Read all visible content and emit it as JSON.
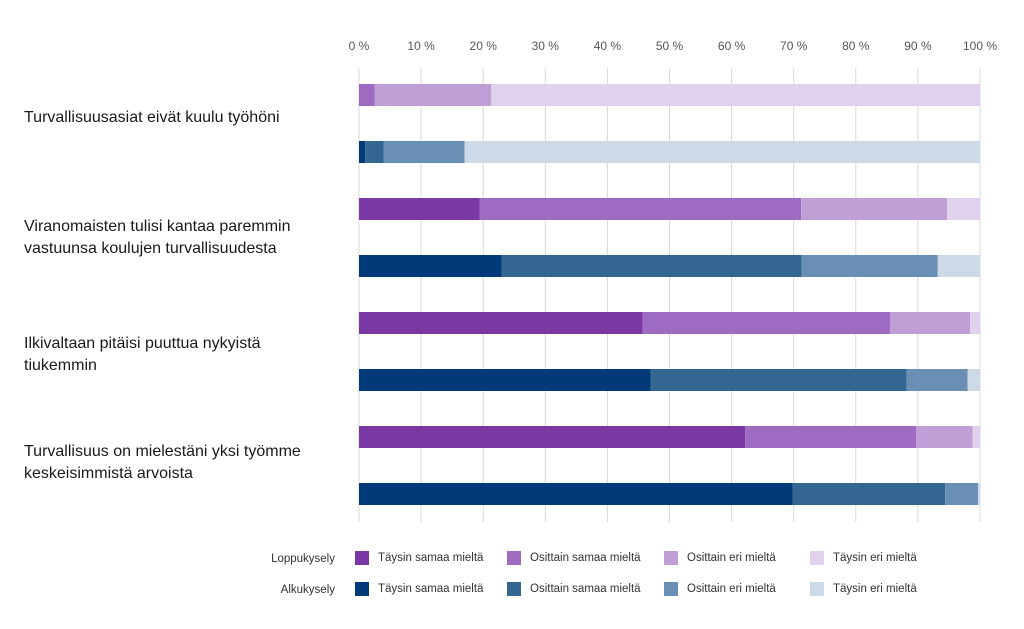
{
  "chart_data": {
    "type": "bar",
    "orientation": "horizontal",
    "stacked": true,
    "xlim": [
      0,
      100
    ],
    "x_ticks": [
      "0 %",
      "10 %",
      "20 %",
      "30 %",
      "40 %",
      "50 %",
      "60 %",
      "70 %",
      "80 %",
      "90 %",
      "100 %"
    ],
    "grid": true,
    "categories": [
      "Turvallisuusasiat eivät kuulu työhöni",
      "Viranomaisten tulisi kantaa paremmin vastuunsa koulujen turvallisuudesta",
      "Ilkivaltaan pitäisi puuttua nykyistä tiukemmin",
      "Turvallisuus on mielestäni yksi työmme keskeisimmistä arvoista"
    ],
    "segments": [
      "Täysin samaa mieltä",
      "Osittain samaa mieltä",
      "Osittain eri mieltä",
      "Täysin eri mieltä"
    ],
    "groups": [
      {
        "name": "Loppukysely",
        "colors": [
          "#7a38a4",
          "#9d6bc2",
          "#c09fd6",
          "#e0d2ec"
        ],
        "values": [
          [
            0,
            2.5,
            18.8,
            78.7
          ],
          [
            19.4,
            51.8,
            23.5,
            5.3
          ],
          [
            45.7,
            39.8,
            12.9,
            1.6
          ],
          [
            62.2,
            27.5,
            9.1,
            1.2
          ]
        ]
      },
      {
        "name": "Alkukysely",
        "colors": [
          "#003a78",
          "#336691",
          "#6a8fb5",
          "#ccd9e6"
        ],
        "values": [
          [
            1.0,
            3.0,
            13.0,
            83.0
          ],
          [
            23.0,
            48.3,
            21.9,
            6.8
          ],
          [
            47.0,
            41.2,
            9.8,
            2.0
          ],
          [
            69.8,
            24.6,
            5.3,
            0.3
          ]
        ]
      }
    ],
    "legend": {
      "placement": "bottom",
      "rows": [
        {
          "label": "Loppukysely",
          "items": [
            "Täysin samaa mieltä",
            "Osittain samaa mieltä",
            "Osittain eri mieltä",
            "Täysin eri mieltä"
          ]
        },
        {
          "label": "Alkukysely",
          "items": [
            "Täysin samaa mieltä",
            "Osittain samaa mieltä",
            "Osittain eri mieltä",
            "Täysin eri mieltä"
          ]
        }
      ]
    }
  },
  "labels": {
    "cat_line1": [
      "Turvallisuusasiat eivät kuulu työhöni",
      "Viranomaisten tulisi kantaa paremmin",
      "Ilkivaltaan pitäisi puuttua nykyistä",
      "Turvallisuus on mielestäni yksi työmme"
    ],
    "cat_line2": [
      "",
      "vastuunsa koulujen turvallisuudesta",
      "tiukemmin",
      "keskeisimmistä arvoista"
    ]
  }
}
